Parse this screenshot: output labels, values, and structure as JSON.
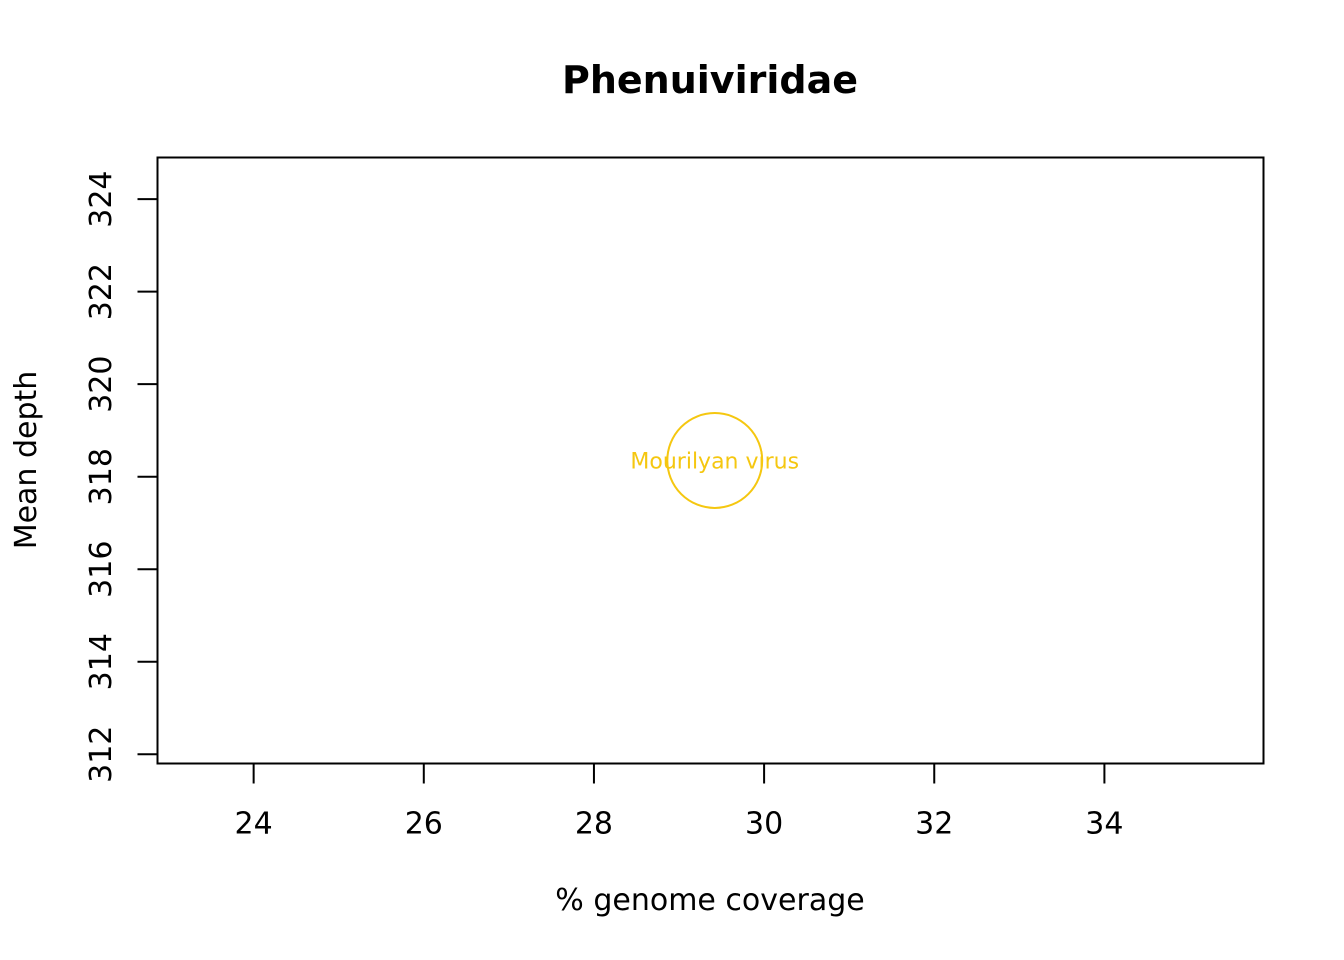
{
  "chart_data": {
    "type": "scatter",
    "title": "Phenuiviridae",
    "xlabel": "% genome coverage",
    "ylabel": "Mean depth",
    "xlim": [
      22.87,
      35.87
    ],
    "ylim": [
      311.8,
      324.9
    ],
    "x_ticks": [
      "24",
      "26",
      "28",
      "30",
      "32",
      "34"
    ],
    "y_ticks": [
      "312",
      "314",
      "316",
      "318",
      "320",
      "322",
      "324"
    ],
    "grid": false,
    "series": [
      {
        "color": "#F5C710",
        "points": [
          {
            "x": 29.42,
            "y": 318.35,
            "label": "Mourilyan virus",
            "size": 1.45
          }
        ]
      }
    ]
  }
}
